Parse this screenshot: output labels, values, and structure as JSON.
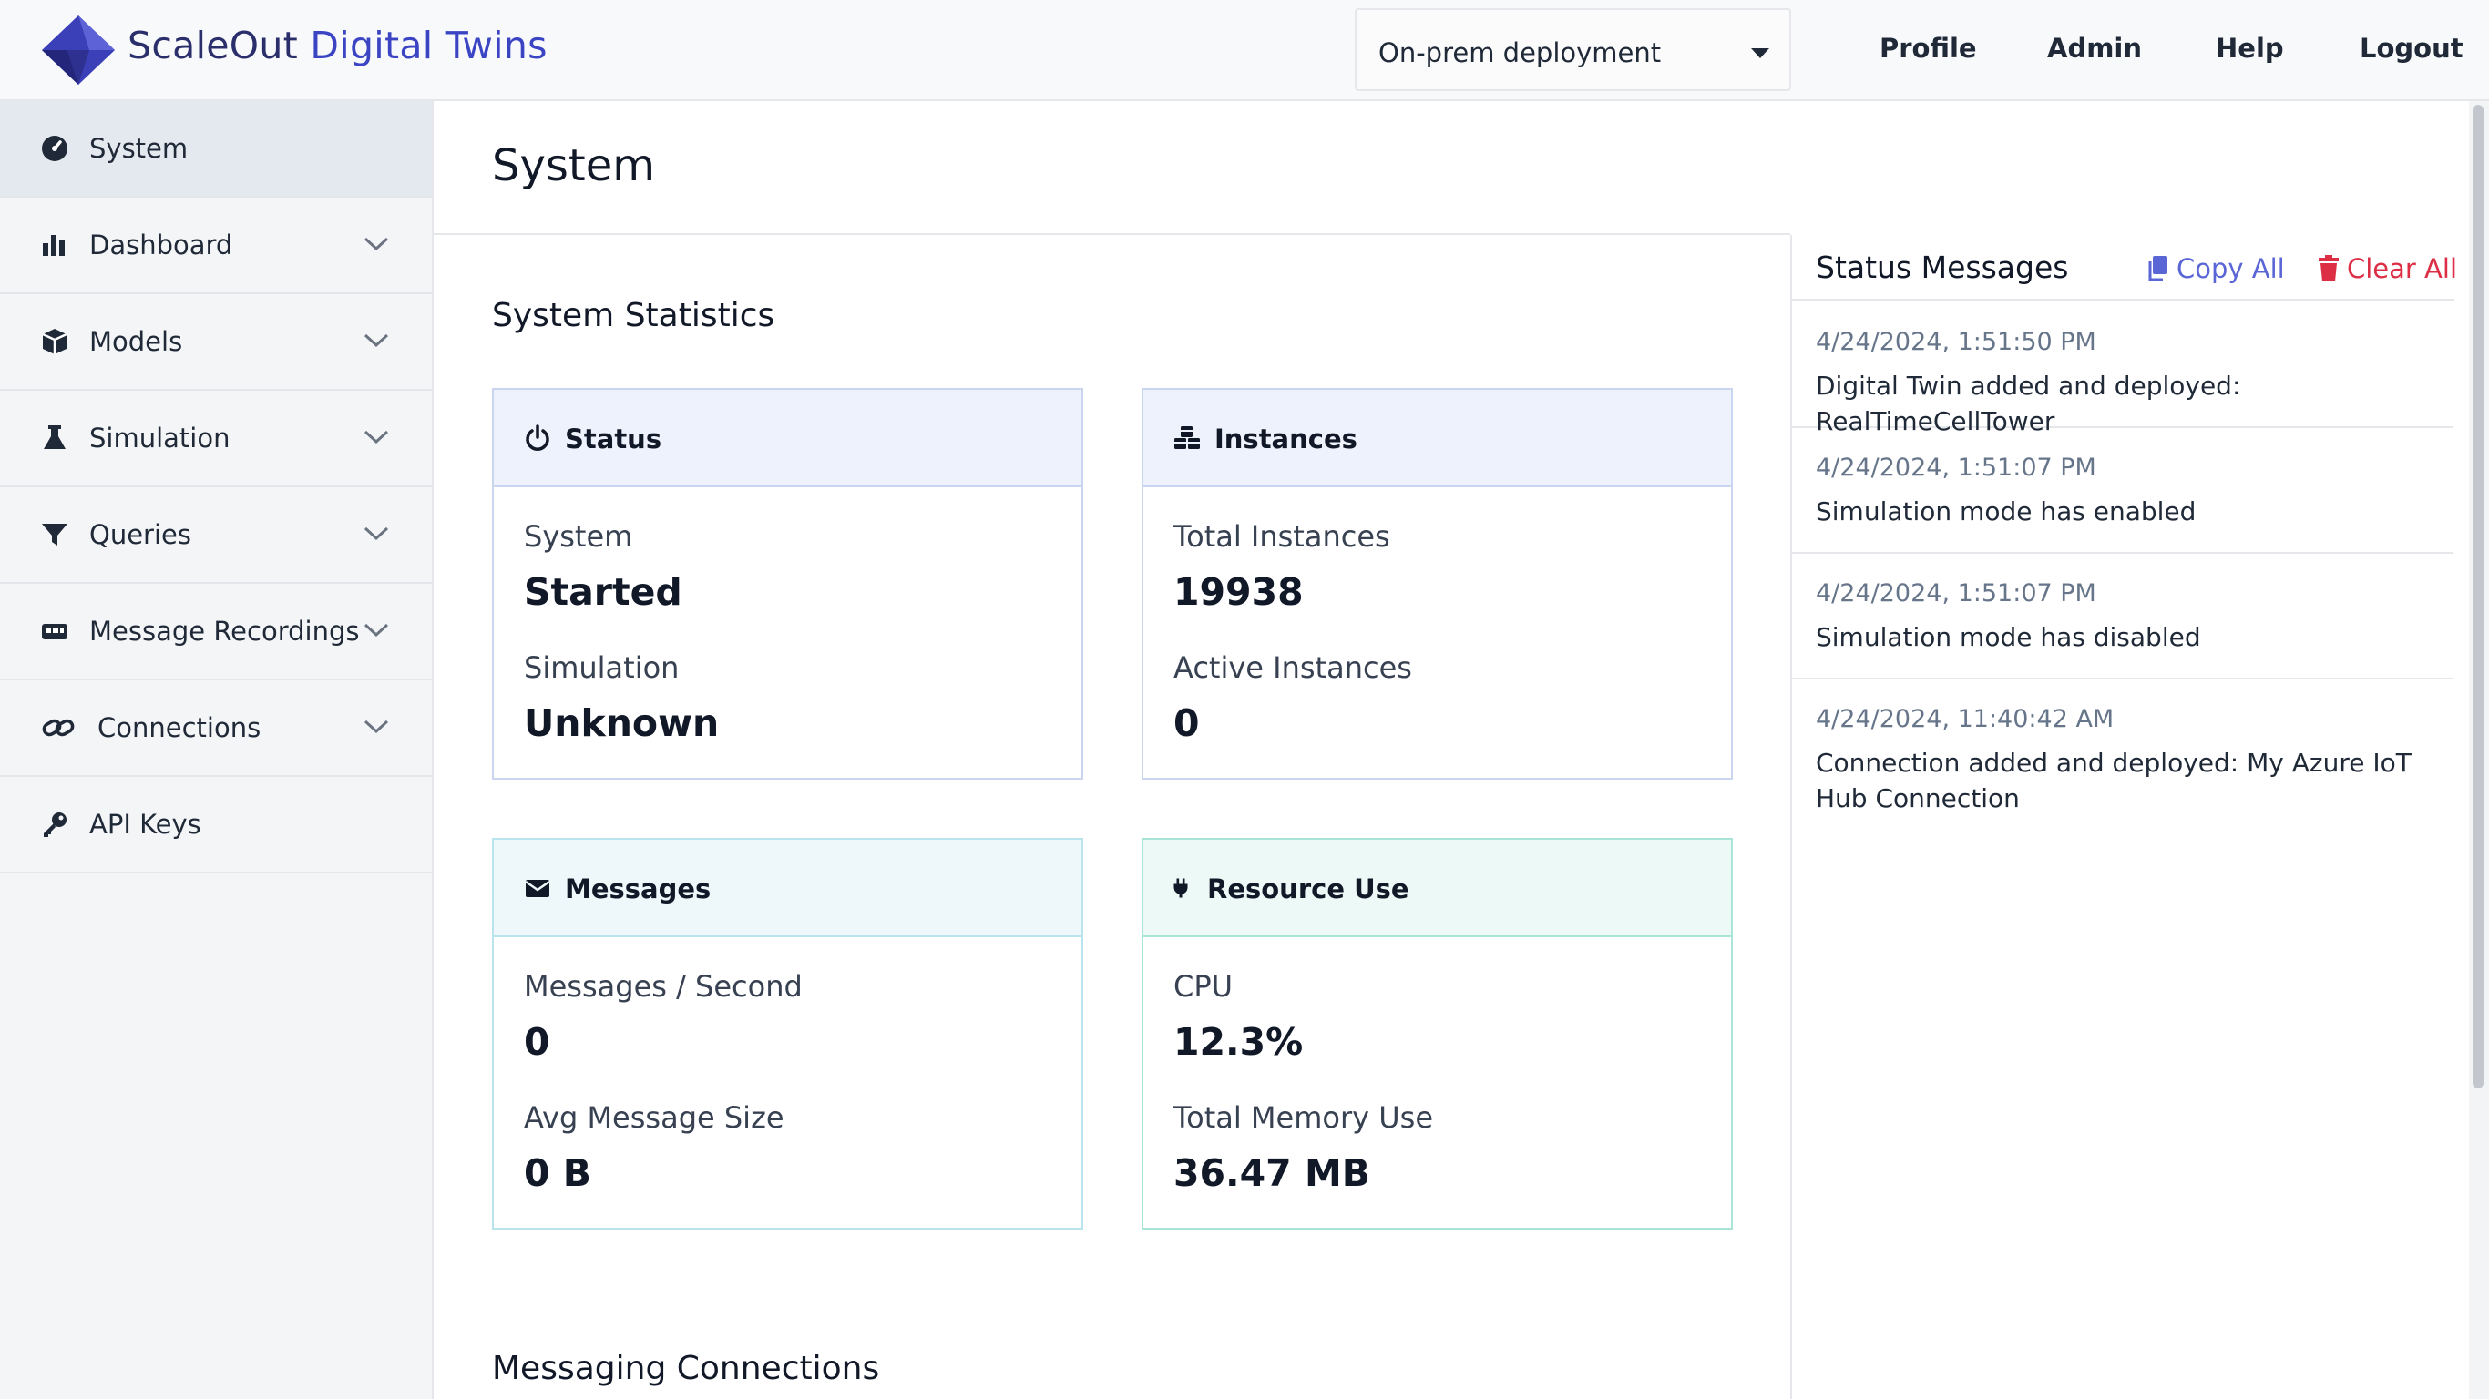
{
  "header": {
    "brand_part1": "ScaleOut",
    "brand_part2": "Digital Twins",
    "deployment_select": "On-prem deployment",
    "nav": [
      "Profile",
      "Admin",
      "Help",
      "Logout"
    ]
  },
  "sidebar": {
    "items": [
      {
        "label": "System",
        "icon": "gauge-icon",
        "active": true
      },
      {
        "label": "Dashboard",
        "icon": "bar-chart-icon"
      },
      {
        "label": "Models",
        "icon": "cube-icon"
      },
      {
        "label": "Simulation",
        "icon": "flask-icon"
      },
      {
        "label": "Queries",
        "icon": "filter-icon"
      },
      {
        "label": "Message Recordings",
        "icon": "recording-icon"
      },
      {
        "label": "Connections",
        "icon": "link-icon"
      },
      {
        "label": "API Keys",
        "icon": "key-icon"
      }
    ]
  },
  "main": {
    "page_title": "System",
    "section_title": "System Statistics",
    "section2_title": "Messaging Connections",
    "cards": {
      "status": {
        "title": "Status",
        "label1": "System",
        "value1": "Started",
        "label2": "Simulation",
        "value2": "Unknown"
      },
      "instances": {
        "title": "Instances",
        "label1": "Total Instances",
        "value1": "19938",
        "label2": "Active Instances",
        "value2": "0"
      },
      "messages": {
        "title": "Messages",
        "label1": "Messages / Second",
        "value1": "0",
        "label2": "Avg Message Size",
        "value2": "0 B"
      },
      "resource": {
        "title": "Resource Use",
        "label1": "CPU",
        "value1": "12.3%",
        "label2": "Total Memory Use",
        "value2": "36.47 MB"
      }
    }
  },
  "status_panel": {
    "title": "Status Messages",
    "copy_all": "Copy All",
    "clear_all": "Clear All",
    "messages": [
      {
        "time": "4/24/2024, 1:51:50 PM",
        "text": "Digital Twin added and deployed: RealTimeCellTower"
      },
      {
        "time": "4/24/2024, 1:51:07 PM",
        "text": "Simulation mode has enabled"
      },
      {
        "time": "4/24/2024, 1:51:07 PM",
        "text": "Simulation mode has disabled"
      },
      {
        "time": "4/24/2024, 11:40:42 AM",
        "text": "Connection added and deployed: My Azure IoT Hub Connection"
      }
    ]
  },
  "colors": {
    "accent": "#3b45c4",
    "danger": "#dc2f45",
    "link": "#5b66d6"
  }
}
